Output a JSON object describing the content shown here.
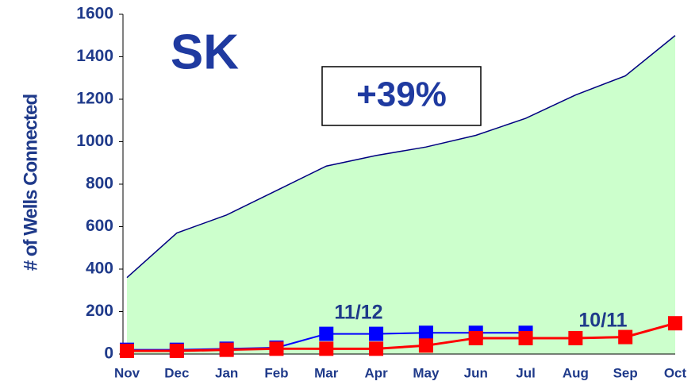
{
  "chart_data": {
    "type": "line",
    "title": "SK",
    "annotations": [
      "+39%"
    ],
    "y_label": "# of Wells Connected",
    "categories": [
      "Nov",
      "Dec",
      "Jan",
      "Feb",
      "Mar",
      "Apr",
      "May",
      "Jun",
      "Jul",
      "Aug",
      "Sep",
      "Oct"
    ],
    "series": [
      {
        "kind": "area",
        "color": "#ccffcc",
        "line_color": "#000080",
        "values": [
          360,
          570,
          655,
          770,
          885,
          935,
          975,
          1030,
          1110,
          1220,
          1310,
          1500
        ]
      },
      {
        "name": "11/12",
        "color": "#0000ff",
        "values": [
          20,
          20,
          25,
          30,
          95,
          95,
          100,
          100,
          100,
          null,
          null,
          null
        ]
      },
      {
        "name": "10/11",
        "color": "#ff0000",
        "values": [
          15,
          15,
          20,
          25,
          25,
          25,
          40,
          75,
          75,
          75,
          80,
          145
        ]
      }
    ],
    "ylim": [
      0,
      1600
    ],
    "yticks": [
      0,
      200,
      400,
      600,
      800,
      1000,
      1200,
      1400,
      1600
    ],
    "grid": false
  }
}
